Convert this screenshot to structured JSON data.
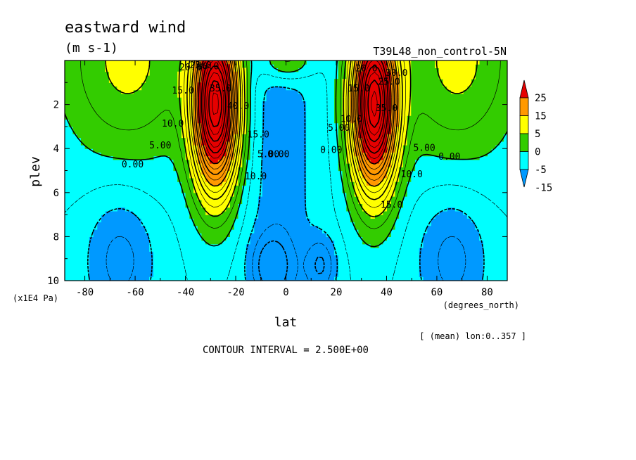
{
  "chart_data": {
    "type": "contour",
    "title": "eastward wind",
    "units": "(m s-1)",
    "run_label": "T39L48_non_control-5N",
    "xlabel": "lat",
    "x_units": "(degrees_north)",
    "ylabel": "plev",
    "y_units": "(x1E4 Pa)",
    "xlim": [
      -88,
      88
    ],
    "ylim": [
      10,
      0
    ],
    "x_ticks": [
      -80,
      -60,
      -40,
      -20,
      0,
      20,
      40,
      60,
      80
    ],
    "x_tick_labels": [
      "-80",
      "-60",
      "-40",
      "-20",
      "0",
      "20",
      "40",
      "60",
      "80"
    ],
    "y_ticks": [
      2,
      4,
      6,
      8,
      10
    ],
    "y_tick_labels": [
      "2",
      "4",
      "6",
      "8",
      "10"
    ],
    "mean_note": "[ (mean) lon:0..357 ]",
    "contour_interval_text": "CONTOUR INTERVAL = 2.500E+00",
    "contour_interval": 2.5,
    "jets": [
      {
        "lat": -28,
        "plev": 2.0,
        "max": 45
      },
      {
        "lat": 35,
        "plev": 2.0,
        "max": 45
      }
    ],
    "colorbar": {
      "levels": [
        -15,
        -5,
        0,
        5,
        15,
        25
      ],
      "labels": [
        "25",
        "15",
        "5",
        "0",
        "-5",
        "-15"
      ],
      "colors": [
        "#e60000",
        "#ff9900",
        "#ffff00",
        "#33cc00",
        "#00ffff",
        "#0099ff"
      ]
    },
    "contour_labels": [
      {
        "text": "0.00",
        "lat": -61,
        "plev": 4.85
      },
      {
        "text": "5.00",
        "lat": -50,
        "plev": 4.0
      },
      {
        "text": "10.0",
        "lat": -45,
        "plev": 3.0
      },
      {
        "text": "15.0",
        "lat": -41,
        "plev": 1.5
      },
      {
        "text": "20.0",
        "lat": -38,
        "plev": 0.45
      },
      {
        "text": "25.0",
        "lat": -34,
        "plev": 0.35
      },
      {
        "text": "30.0",
        "lat": -31,
        "plev": 0.4
      },
      {
        "text": "35.0",
        "lat": -26,
        "plev": 1.4
      },
      {
        "text": "40.0",
        "lat": -19,
        "plev": 2.2
      },
      {
        "text": "15.0",
        "lat": -11,
        "plev": 3.5
      },
      {
        "text": "10.0",
        "lat": -12,
        "plev": 5.4
      },
      {
        "text": "5.00",
        "lat": -7,
        "plev": 4.4
      },
      {
        "text": "0.00",
        "lat": -3,
        "plev": 4.4
      },
      {
        "text": "0.00",
        "lat": 18,
        "plev": 4.2
      },
      {
        "text": "5.00",
        "lat": 21,
        "plev": 3.2
      },
      {
        "text": "10.0",
        "lat": 26,
        "plev": 2.8
      },
      {
        "text": "15.0",
        "lat": 29,
        "plev": 1.4
      },
      {
        "text": "20.0",
        "lat": 32,
        "plev": 0.5
      },
      {
        "text": "25.0",
        "lat": 41,
        "plev": 1.1
      },
      {
        "text": "30.0",
        "lat": 44,
        "plev": 0.7
      },
      {
        "text": "35.0",
        "lat": 40,
        "plev": 2.3
      },
      {
        "text": "15.0",
        "lat": 42,
        "plev": 6.7
      },
      {
        "text": "10.0",
        "lat": 50,
        "plev": 5.3
      },
      {
        "text": "5.00",
        "lat": 55,
        "plev": 4.1
      },
      {
        "text": "0.00",
        "lat": 65,
        "plev": 4.5
      }
    ]
  }
}
